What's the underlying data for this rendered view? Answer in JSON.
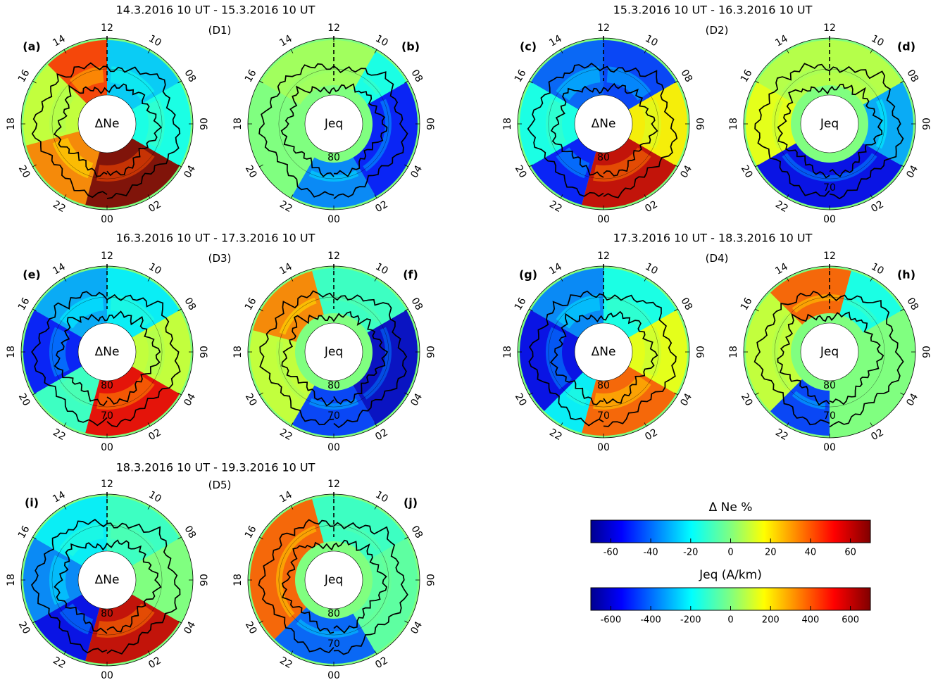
{
  "chart_data": {
    "type": "heatmap",
    "projection": "polar",
    "radial_axis": "magnetic latitude (degrees)",
    "angular_axis": "magnetic local time (hours)",
    "hour_labels": [
      "12",
      "10",
      "08",
      "06",
      "04",
      "02",
      "00",
      "22",
      "20",
      "18",
      "16",
      "14"
    ],
    "lat_circle_labels": [
      "80",
      "70"
    ],
    "days": [
      {
        "id": "D1",
        "title": "14.3.2016 10 UT - 15.3.2016 10 UT",
        "tag": "(D1)",
        "panels": [
          {
            "letter": "(a)",
            "quantity": "ΔNe",
            "center_label": "ΔNe",
            "lat_labels": [],
            "sectors": [
              {
                "from_h": 15,
                "to_h": 19,
                "value": 10
              },
              {
                "from_h": 19,
                "to_h": 23,
                "value": 35
              },
              {
                "from_h": 23,
                "to_h": 4,
                "value": 70
              },
              {
                "from_h": 4,
                "to_h": 8,
                "value": -15
              },
              {
                "from_h": 8,
                "to_h": 12,
                "value": -25
              },
              {
                "from_h": 12,
                "to_h": 15,
                "value": 45
              }
            ]
          },
          {
            "letter": "(b)",
            "quantity": "Jeq",
            "center_label": "Jeq",
            "lat_labels": [
              "80"
            ],
            "sectors": [
              {
                "from_h": 10,
                "to_h": 16,
                "value": 50
              },
              {
                "from_h": 16,
                "to_h": 22,
                "value": 0
              },
              {
                "from_h": 22,
                "to_h": 2,
                "value": -350
              },
              {
                "from_h": 2,
                "to_h": 8,
                "value": -500
              },
              {
                "from_h": 8,
                "to_h": 10,
                "value": -150
              }
            ]
          }
        ]
      },
      {
        "id": "D2",
        "title": "15.3.2016 10 UT - 16.3.2016 10 UT",
        "tag": "(D2)",
        "panels": [
          {
            "letter": "(c)",
            "quantity": "ΔNe",
            "center_label": "ΔNe",
            "lat_labels": [
              "80"
            ],
            "sectors": [
              {
                "from_h": 12,
                "to_h": 16,
                "value": -40
              },
              {
                "from_h": 16,
                "to_h": 20,
                "value": -15
              },
              {
                "from_h": 20,
                "to_h": 23,
                "value": -50
              },
              {
                "from_h": 23,
                "to_h": 4,
                "value": 60
              },
              {
                "from_h": 4,
                "to_h": 8,
                "value": 20
              },
              {
                "from_h": 8,
                "to_h": 12,
                "value": -45
              }
            ]
          },
          {
            "letter": "(d)",
            "quantity": "Jeq",
            "center_label": "Jeq",
            "lat_labels": [
              "70"
            ],
            "sectors": [
              {
                "from_h": 8,
                "to_h": 16,
                "value": 80
              },
              {
                "from_h": 16,
                "to_h": 20,
                "value": 150
              },
              {
                "from_h": 20,
                "to_h": 4,
                "value": -550
              },
              {
                "from_h": 4,
                "to_h": 8,
                "value": -300
              }
            ]
          }
        ]
      },
      {
        "id": "D3",
        "title": "16.3.2016 10 UT - 17.3.2016 10 UT",
        "tag": "(D3)",
        "panels": [
          {
            "letter": "(e)",
            "quantity": "ΔNe",
            "center_label": "ΔNe",
            "lat_labels": [
              "80",
              "70"
            ],
            "sectors": [
              {
                "from_h": 12,
                "to_h": 16,
                "value": -30
              },
              {
                "from_h": 16,
                "to_h": 20,
                "value": -50
              },
              {
                "from_h": 20,
                "to_h": 23,
                "value": -10
              },
              {
                "from_h": 23,
                "to_h": 4,
                "value": 55
              },
              {
                "from_h": 4,
                "to_h": 8,
                "value": 10
              },
              {
                "from_h": 8,
                "to_h": 12,
                "value": -20
              }
            ]
          },
          {
            "letter": "(f)",
            "quantity": "Jeq",
            "center_label": "Jeq",
            "lat_labels": [
              "80",
              "70"
            ],
            "sectors": [
              {
                "from_h": 13,
                "to_h": 17,
                "value": 350
              },
              {
                "from_h": 17,
                "to_h": 22,
                "value": 100
              },
              {
                "from_h": 22,
                "to_h": 2,
                "value": -450
              },
              {
                "from_h": 2,
                "to_h": 8,
                "value": -600
              },
              {
                "from_h": 8,
                "to_h": 13,
                "value": -100
              }
            ]
          }
        ]
      },
      {
        "id": "D4",
        "title": "17.3.2016 10 UT - 18.3.2016 10 UT",
        "tag": "(D4)",
        "panels": [
          {
            "letter": "(g)",
            "quantity": "ΔNe",
            "center_label": "ΔNe",
            "lat_labels": [
              "80",
              "70"
            ],
            "sectors": [
              {
                "from_h": 12,
                "to_h": 16,
                "value": -35
              },
              {
                "from_h": 16,
                "to_h": 21,
                "value": -55
              },
              {
                "from_h": 21,
                "to_h": 23,
                "value": -20
              },
              {
                "from_h": 23,
                "to_h": 4,
                "value": 40
              },
              {
                "from_h": 4,
                "to_h": 8,
                "value": 15
              },
              {
                "from_h": 8,
                "to_h": 12,
                "value": -15
              }
            ]
          },
          {
            "letter": "(h)",
            "quantity": "Jeq",
            "center_label": "Jeq",
            "lat_labels": [
              "80",
              "70"
            ],
            "sectors": [
              {
                "from_h": 11,
                "to_h": 15,
                "value": 400
              },
              {
                "from_h": 15,
                "to_h": 21,
                "value": 100
              },
              {
                "from_h": 21,
                "to_h": 24,
                "value": -450
              },
              {
                "from_h": 0,
                "to_h": 8,
                "value": 0
              },
              {
                "from_h": 8,
                "to_h": 11,
                "value": -150
              }
            ]
          }
        ]
      },
      {
        "id": "D5",
        "title": "18.3.2016 10 UT - 19.3.2016 10 UT",
        "tag": "(D5)",
        "panels": [
          {
            "letter": "(i)",
            "quantity": "ΔNe",
            "center_label": "ΔNe",
            "lat_labels": [
              "80"
            ],
            "sectors": [
              {
                "from_h": 12,
                "to_h": 16,
                "value": -20
              },
              {
                "from_h": 16,
                "to_h": 20,
                "value": -35
              },
              {
                "from_h": 20,
                "to_h": 23,
                "value": -55
              },
              {
                "from_h": 23,
                "to_h": 4,
                "value": 60
              },
              {
                "from_h": 4,
                "to_h": 8,
                "value": 0
              },
              {
                "from_h": 8,
                "to_h": 12,
                "value": -10
              }
            ]
          },
          {
            "letter": "(j)",
            "quantity": "Jeq",
            "center_label": "Jeq",
            "lat_labels": [
              "80",
              "70"
            ],
            "sectors": [
              {
                "from_h": 13,
                "to_h": 21,
                "value": 400
              },
              {
                "from_h": 21,
                "to_h": 2,
                "value": -400
              },
              {
                "from_h": 2,
                "to_h": 8,
                "value": -50
              },
              {
                "from_h": 8,
                "to_h": 13,
                "value": -100
              }
            ]
          }
        ]
      }
    ],
    "colorbars": [
      {
        "title": "Δ Ne %",
        "range": [
          -70,
          70
        ],
        "ticks": [
          -60,
          -40,
          -20,
          0,
          20,
          40,
          60
        ],
        "colormap": "jet"
      },
      {
        "title": "Jeq (A/km)",
        "range": [
          -700,
          700
        ],
        "ticks": [
          -600,
          -400,
          -200,
          0,
          200,
          400,
          600
        ],
        "colormap": "jet"
      }
    ]
  }
}
